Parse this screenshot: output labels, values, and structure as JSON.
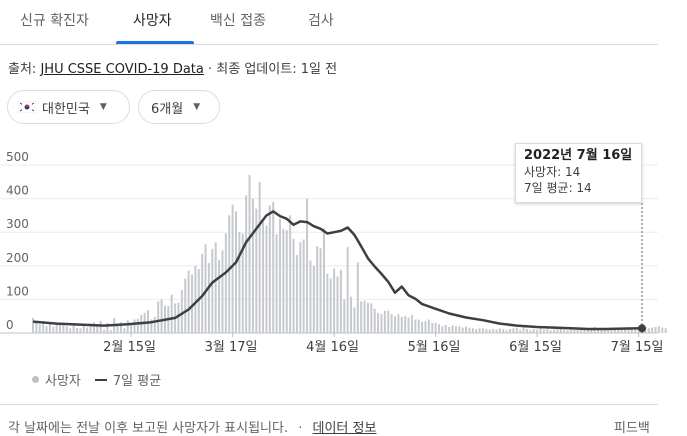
{
  "tabs": [
    {
      "label": "신규 확진자",
      "active": false
    },
    {
      "label": "사망자",
      "active": true
    },
    {
      "label": "백신 접종",
      "active": false
    },
    {
      "label": "검사",
      "active": false
    }
  ],
  "source": {
    "prefix": "출처:",
    "link": "JHU CSSE COVID-19 Data",
    "separator": "·",
    "updated": "최종 업데이트: 1일 전"
  },
  "filters": {
    "country": "대한민국",
    "country_icon": "south-korea-flag-icon",
    "period": "6개월",
    "caret_icon": "caret-down-icon"
  },
  "legend": {
    "deaths": "사망자",
    "avg": "7일 평균"
  },
  "tooltip": {
    "date": "2022년 7월 16일",
    "deaths": "사망자: 14",
    "avg": "7일 평균: 14"
  },
  "footer": {
    "note": "각 날짜에는 전날 이후 보고된 사망자가 표시됩니다.",
    "separator": "·",
    "link": "데이터 정보",
    "feedback": "피드백"
  },
  "colors": {
    "bars": "#c6c9cd",
    "line": "#3c4043",
    "accent": "#1a73e8",
    "grid": "#ebebeb"
  },
  "chart_data": {
    "type": "bar",
    "ylim": [
      0,
      500
    ],
    "yticks": [
      0,
      100,
      200,
      300,
      400,
      500
    ],
    "xlim": [
      "2022-01-17",
      "2022-07-16"
    ],
    "xticks": [
      {
        "date": "2022-02-15",
        "label": "2월 15일"
      },
      {
        "date": "2022-03-17",
        "label": "3월 17일"
      },
      {
        "date": "2022-04-16",
        "label": "4월 16일"
      },
      {
        "date": "2022-05-16",
        "label": "5월 16일"
      },
      {
        "date": "2022-06-15",
        "label": "6월 15일"
      },
      {
        "date": "2022-07-15",
        "label": "7월 15일"
      }
    ],
    "grid": true,
    "legend_position": "bottom-left",
    "series": [
      {
        "name": "사망자",
        "type": "bar",
        "values": [
          45,
          30,
          25,
          35,
          20,
          28,
          18,
          26,
          24,
          28,
          20,
          14,
          24,
          15,
          14,
          22,
          16,
          28,
          32,
          20,
          36,
          10,
          30,
          8,
          44,
          26,
          32,
          14,
          38,
          28,
          40,
          42,
          54,
          60,
          68,
          40,
          48,
          94,
          100,
          82,
          80,
          114,
          88,
          90,
          128,
          162,
          186,
          174,
          200,
          190,
          236,
          264,
          208,
          250,
          270,
          218,
          246,
          296,
          350,
          382,
          362,
          300,
          296,
          410,
          470,
          400,
          370,
          450,
          330,
          320,
          380,
          390,
          294,
          340,
          310,
          306,
          350,
          280,
          232,
          270,
          278,
          400,
          216,
          200,
          258,
          252,
          312,
          176,
          162,
          192,
          168,
          188,
          100,
          256,
          108,
          76,
          210,
          94,
          96,
          90,
          88,
          72,
          60,
          56,
          66,
          66,
          56,
          50,
          56,
          48,
          50,
          46,
          54,
          40,
          40,
          34,
          36,
          40,
          30,
          30,
          26,
          20,
          24,
          18,
          22,
          20,
          20,
          16,
          20,
          16,
          14,
          12,
          14,
          14,
          12,
          10,
          12,
          10,
          14,
          12,
          8,
          12,
          14,
          16,
          10,
          20,
          12,
          8,
          12,
          10,
          14,
          10,
          12,
          8,
          10,
          12,
          14,
          10,
          8,
          12,
          10,
          14,
          12,
          16,
          10,
          14,
          18,
          12,
          14,
          10,
          12,
          14,
          16,
          14,
          16,
          14,
          18,
          16,
          14,
          16,
          20,
          18,
          14,
          16,
          18,
          20,
          16,
          14
        ]
      },
      {
        "name": "7일 평균",
        "type": "line",
        "points": [
          [
            "2022-01-17",
            34
          ],
          [
            "2022-01-24",
            28
          ],
          [
            "2022-01-31",
            25
          ],
          [
            "2022-02-07",
            22
          ],
          [
            "2022-02-14",
            26
          ],
          [
            "2022-02-21",
            32
          ],
          [
            "2022-02-28",
            45
          ],
          [
            "2022-03-04",
            70
          ],
          [
            "2022-03-08",
            110
          ],
          [
            "2022-03-11",
            150
          ],
          [
            "2022-03-15",
            180
          ],
          [
            "2022-03-18",
            210
          ],
          [
            "2022-03-21",
            270
          ],
          [
            "2022-03-24",
            310
          ],
          [
            "2022-03-27",
            350
          ],
          [
            "2022-03-29",
            362
          ],
          [
            "2022-03-31",
            348
          ],
          [
            "2022-04-02",
            340
          ],
          [
            "2022-04-04",
            322
          ],
          [
            "2022-04-06",
            332
          ],
          [
            "2022-04-08",
            330
          ],
          [
            "2022-04-10",
            318
          ],
          [
            "2022-04-12",
            310
          ],
          [
            "2022-04-14",
            296
          ],
          [
            "2022-04-16",
            300
          ],
          [
            "2022-04-18",
            304
          ],
          [
            "2022-04-20",
            314
          ],
          [
            "2022-04-22",
            292
          ],
          [
            "2022-04-24",
            258
          ],
          [
            "2022-04-26",
            222
          ],
          [
            "2022-04-28",
            198
          ],
          [
            "2022-04-30",
            176
          ],
          [
            "2022-05-02",
            152
          ],
          [
            "2022-05-04",
            120
          ],
          [
            "2022-05-06",
            138
          ],
          [
            "2022-05-08",
            112
          ],
          [
            "2022-05-10",
            102
          ],
          [
            "2022-05-12",
            86
          ],
          [
            "2022-05-16",
            72
          ],
          [
            "2022-05-20",
            58
          ],
          [
            "2022-05-25",
            46
          ],
          [
            "2022-05-30",
            38
          ],
          [
            "2022-06-04",
            28
          ],
          [
            "2022-06-09",
            22
          ],
          [
            "2022-06-15",
            18
          ],
          [
            "2022-06-20",
            16
          ],
          [
            "2022-06-25",
            14
          ],
          [
            "2022-06-30",
            12
          ],
          [
            "2022-07-05",
            12
          ],
          [
            "2022-07-10",
            13
          ],
          [
            "2022-07-16",
            14
          ]
        ]
      }
    ]
  }
}
